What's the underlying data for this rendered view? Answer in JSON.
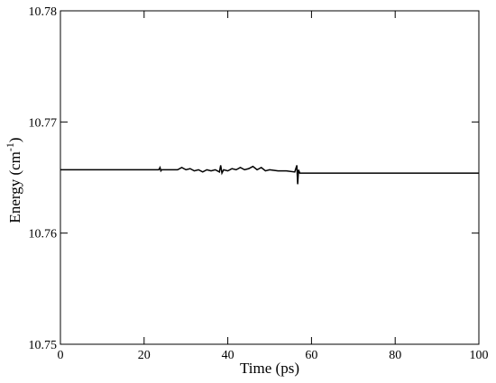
{
  "chart_data": {
    "type": "line",
    "xlabel": "Time (ps)",
    "ylabel": [
      "Energy (cm",
      "-1",
      ")"
    ],
    "x": [
      0,
      23.5,
      23.8,
      24,
      24.2,
      28,
      29,
      30,
      31,
      32,
      33,
      34,
      35,
      36,
      37,
      38,
      38.3,
      38.6,
      39,
      40,
      41,
      42,
      43,
      44,
      45,
      46,
      47,
      48,
      49,
      50,
      52,
      54,
      56,
      56.5,
      56.7,
      56.9,
      57.2,
      60,
      100
    ],
    "series": [
      {
        "name": "energy",
        "color": "#000000",
        "values": [
          10.7657,
          10.7657,
          10.7659,
          10.7656,
          10.7657,
          10.7657,
          10.7659,
          10.7657,
          10.7658,
          10.7656,
          10.7657,
          10.7655,
          10.7657,
          10.7656,
          10.7657,
          10.7655,
          10.7661,
          10.7654,
          10.7657,
          10.7656,
          10.7658,
          10.7657,
          10.7659,
          10.7657,
          10.7658,
          10.766,
          10.7657,
          10.7659,
          10.7656,
          10.7657,
          10.7656,
          10.7656,
          10.7655,
          10.7661,
          10.7644,
          10.7657,
          10.7654,
          10.7654,
          10.7654
        ]
      }
    ],
    "xlim": [
      0,
      100
    ],
    "xticks": [
      0,
      20,
      40,
      60,
      80,
      100
    ],
    "ylim": [
      10.75,
      10.78
    ],
    "yticks": [
      10.75,
      10.76,
      10.77,
      10.78
    ]
  }
}
